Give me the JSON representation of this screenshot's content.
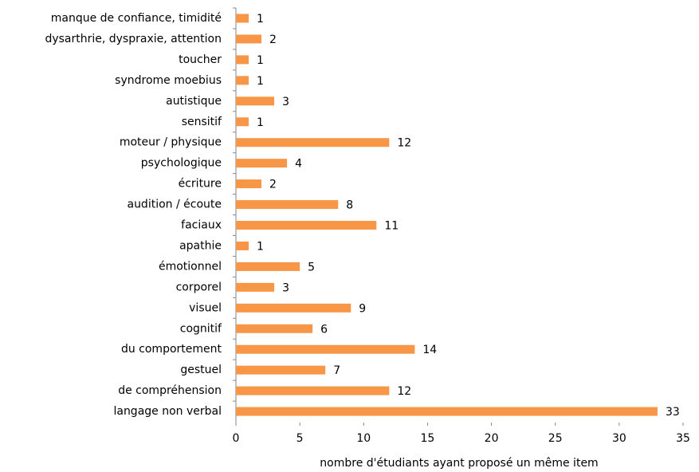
{
  "chart_data": {
    "type": "bar",
    "orientation": "horizontal",
    "categories": [
      "manque de confiance, timidité",
      "dysarthrie, dyspraxie, attention",
      "toucher",
      "syndrome moebius",
      "autistique",
      "sensitif",
      "moteur / physique",
      "psychologique",
      "écriture",
      "audition / écoute",
      "faciaux",
      "apathie",
      "émotionnel",
      "corporel",
      "visuel",
      "cognitif",
      "du comportement",
      "gestuel",
      "de compréhension",
      "langage non verbal"
    ],
    "values": [
      1,
      2,
      1,
      1,
      3,
      1,
      12,
      4,
      2,
      8,
      11,
      1,
      5,
      3,
      9,
      6,
      14,
      7,
      12,
      33
    ],
    "color": "#f79646",
    "xlim": [
      0,
      35
    ],
    "xticks": [
      0,
      5,
      10,
      15,
      20,
      25,
      30,
      35
    ],
    "xlabel": "nombre d'étudiants ayant proposé un même  item"
  }
}
